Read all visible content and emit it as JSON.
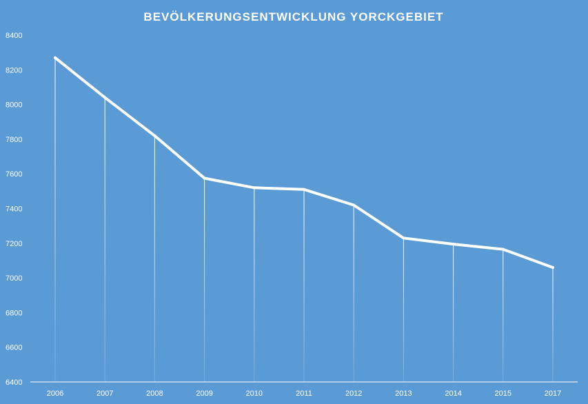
{
  "chart_data": {
    "type": "line",
    "title": "BEVÖLKERUNGSENTWICKLUNG  YORCKGEBIET",
    "xlabel": "",
    "ylabel": "",
    "categories": [
      "2006",
      "2007",
      "2008",
      "2009",
      "2010",
      "2011",
      "2012",
      "2013",
      "2014",
      "2015",
      "2017"
    ],
    "series": [
      {
        "values": [
          8270,
          8040,
          7820,
          7575,
          7520,
          7510,
          7420,
          7230,
          7195,
          7165,
          7060
        ]
      }
    ],
    "ylim": [
      6400,
      8400
    ],
    "yticks": [
      "6400",
      "6600",
      "6800",
      "7000",
      "7200",
      "7400",
      "7600",
      "7800",
      "8000",
      "8200",
      "8400"
    ],
    "drop_lines": true,
    "grid": false,
    "legend": "none",
    "colors": {
      "background": "#5b9bd5",
      "line": "#ffffff",
      "text": "#ffffff"
    }
  }
}
